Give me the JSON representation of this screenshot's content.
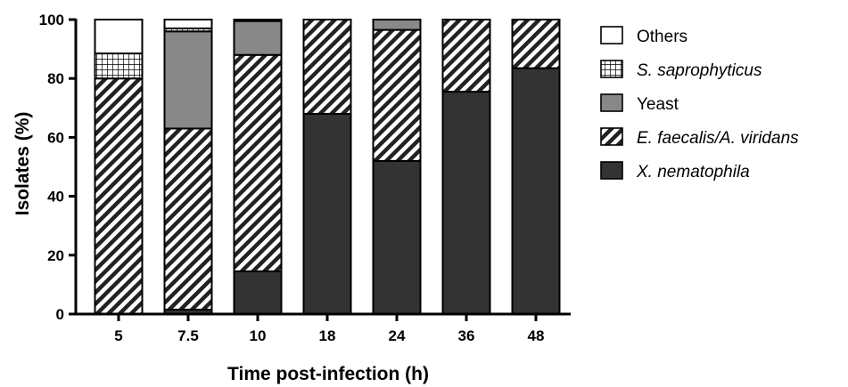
{
  "chart_data": {
    "type": "bar",
    "stacked": true,
    "categories": [
      "5",
      "7.5",
      "10",
      "18",
      "24",
      "36",
      "48"
    ],
    "xlabel": "Time post-infection (h)",
    "ylabel": "Isolates (%)",
    "ylim": [
      0,
      100
    ],
    "yticks": [
      0,
      20,
      40,
      60,
      80,
      100
    ],
    "legend_position": "right",
    "series": [
      {
        "name": "X. nematophila",
        "italic": true,
        "pattern": "solid-dark",
        "color": "#333333",
        "values": [
          0,
          1.5,
          14.5,
          68,
          52,
          75.5,
          83.5
        ]
      },
      {
        "name": "E. faecalis/A. viridans",
        "italic": true,
        "pattern": "diagonal-hatch",
        "color": "#999999",
        "values": [
          80,
          61.5,
          73.5,
          32,
          44.5,
          24.5,
          16.5
        ]
      },
      {
        "name": "Yeast",
        "italic": false,
        "pattern": "solid-gray",
        "color": "#888888",
        "values": [
          0,
          33,
          11.5,
          0,
          3.5,
          0,
          0
        ]
      },
      {
        "name": "S. saprophyticus",
        "italic": true,
        "pattern": "grid",
        "color": "#000000",
        "values": [
          8.5,
          1,
          0.5,
          0,
          0,
          0,
          0
        ]
      },
      {
        "name": "Others",
        "italic": false,
        "pattern": "solid-white",
        "color": "#ffffff",
        "values": [
          11.5,
          3,
          0,
          0,
          0,
          0,
          0
        ]
      }
    ],
    "legend_order": [
      "Others",
      "S. saprophyticus",
      "Yeast",
      "E. faecalis/A. viridans",
      "X. nematophila"
    ]
  }
}
